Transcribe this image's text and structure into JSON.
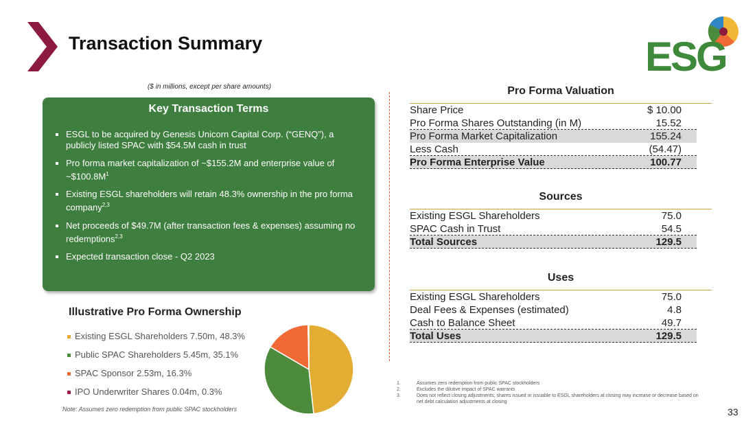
{
  "header": {
    "title": "Transaction Summary",
    "logo": "ESG",
    "subtitle": "($ in millions, except per share amounts)"
  },
  "terms": {
    "title": "Key Transaction Terms",
    "bullets": [
      {
        "text": "ESGL to be acquired by Genesis Unicorn Capital Corp. (“GENQ”), a publicly listed SPAC with $54.5M cash in trust"
      },
      {
        "text": "Pro forma market capitalization of ~$155.2M and enterprise value of ~$100.8M",
        "sup": "1"
      },
      {
        "text": "Existing ESGL shareholders will retain 48.3% ownership in the pro forma company",
        "sup": "2,3"
      },
      {
        "text": "Net proceeds of $49.7M (after transaction fees & expenses) assuming no redemptions",
        "sup": "2,3"
      },
      {
        "text": "Expected transaction close - Q2 2023"
      }
    ]
  },
  "tables": [
    {
      "title": "Pro Forma Valuation",
      "rows": [
        {
          "label": "Share Price",
          "value": "$ 10.00"
        },
        {
          "label": "Pro Forma Shares Outstanding (in M)",
          "value": "15.52"
        },
        {
          "label": "Pro Forma Market Capitalization",
          "value": "155.24",
          "highlight": true
        },
        {
          "label": "Less Cash",
          "value": "(54.47)"
        },
        {
          "label": "Pro Forma Enterprise Value",
          "value": "100.77",
          "highlight": true,
          "bold": true
        }
      ]
    },
    {
      "title": "Sources",
      "rows": [
        {
          "label": "Existing ESGL Shareholders",
          "value": "75.0"
        },
        {
          "label": "SPAC Cash in Trust",
          "value": "54.5"
        },
        {
          "label": "Total Sources",
          "value": "129.5",
          "highlight": true,
          "bold": true
        }
      ]
    },
    {
      "title": "Uses",
      "rows": [
        {
          "label": "Existing ESGL Shareholders",
          "value": "75.0"
        },
        {
          "label": "Deal Fees & Expenses (estimated)",
          "value": "4.8"
        },
        {
          "label": "Cash to Balance Sheet",
          "value": "49.7"
        },
        {
          "label": "Total Uses",
          "value": "129.5",
          "highlight": true,
          "bold": true
        }
      ]
    }
  ],
  "ownership": {
    "title": "Illustrative Pro Forma Ownership",
    "slices": [
      {
        "label": "Existing ESGL Shareholders 7.50m, 48.3%",
        "value": 48.3,
        "color": "#e3ac32"
      },
      {
        "label": "Public SPAC Shareholders 5.45m, 35.1%",
        "value": 35.1,
        "color": "#4c8a3c"
      },
      {
        "label": "SPAC Sponsor 2.53m, 16.3%",
        "value": 16.3,
        "color": "#f06a35"
      },
      {
        "label": "IPO Underwriter Shares 0.04m, 0.3%",
        "value": 0.3,
        "color": "#a3174a"
      }
    ],
    "note": "Note: Assumes zero redemption from public SPAC stockholders"
  },
  "footnotes": [
    {
      "num": "1.",
      "text": "Assumes zero redemption from public SPAC stockholders"
    },
    {
      "num": "2.",
      "text": "Excludes the dilutive impact of SPAC warrants"
    },
    {
      "num": "3.",
      "text": "Does not reflect closing adjustments; shares issued or issuable to ESGL shareholders at closing may increase or decrease based on net debt calculation adjustments at closing"
    }
  ],
  "page_number": "33"
}
